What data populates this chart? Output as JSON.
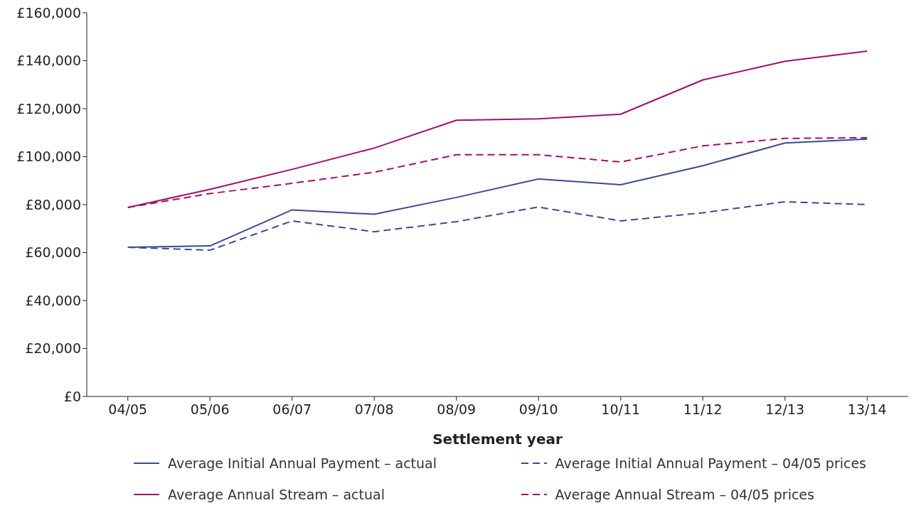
{
  "chart_data": {
    "type": "line",
    "xlabel": "Settlement year",
    "categories": [
      "04/05",
      "05/06",
      "06/07",
      "07/08",
      "08/09",
      "09/10",
      "10/11",
      "11/12",
      "12/13",
      "13/14"
    ],
    "ylim": [
      0,
      160000
    ],
    "yticks": [
      {
        "value": 0,
        "label": "£0"
      },
      {
        "value": 20000,
        "label": "£20,000"
      },
      {
        "value": 40000,
        "label": "£40,000"
      },
      {
        "value": 60000,
        "label": "£60,000"
      },
      {
        "value": 80000,
        "label": "£80,000"
      },
      {
        "value": 100000,
        "label": "£100,000"
      },
      {
        "value": 120000,
        "label": "£120,000"
      },
      {
        "value": 140000,
        "label": "£140,000"
      },
      {
        "value": 160000,
        "label": "£160,000"
      }
    ],
    "grid": false,
    "legend": "bottom",
    "marker": "none",
    "series": [
      {
        "name": "Average Initial Annual Payment – actual",
        "color": "#3b4a8f",
        "line_style": "solid",
        "values": [
          62200,
          62800,
          77800,
          76000,
          83000,
          90700,
          88300,
          96200,
          105700,
          107300
        ]
      },
      {
        "name": "Average Initial Annual Payment – 04/05 prices",
        "color": "#3b4a8f",
        "line_style": "dashed",
        "values": [
          62200,
          61000,
          73200,
          68700,
          72900,
          79000,
          73200,
          76600,
          81200,
          80000
        ]
      },
      {
        "name": "Average Annual Stream – actual",
        "color": "#a0106a",
        "line_style": "solid",
        "values": [
          78800,
          86400,
          94700,
          103600,
          115200,
          115800,
          117700,
          132000,
          139800,
          144000
        ]
      },
      {
        "name": "Average Annual Stream – 04/05 prices",
        "color": "#a0106a",
        "line_style": "dashed",
        "values": [
          78800,
          84600,
          88900,
          93500,
          100800,
          100800,
          97800,
          104500,
          107600,
          107900
        ]
      }
    ]
  }
}
